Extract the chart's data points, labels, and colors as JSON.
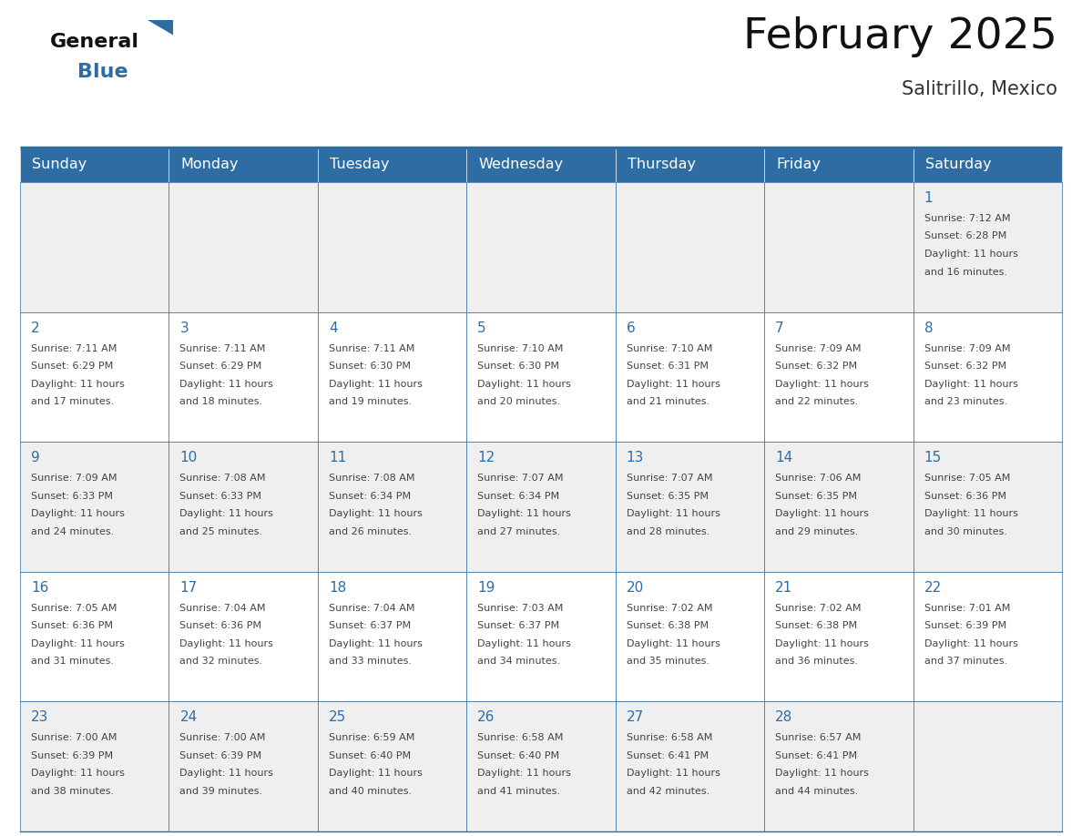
{
  "title": "February 2025",
  "subtitle": "Salitrillo, Mexico",
  "days_of_week": [
    "Sunday",
    "Monday",
    "Tuesday",
    "Wednesday",
    "Thursday",
    "Friday",
    "Saturday"
  ],
  "header_bg": "#2E6DA4",
  "header_text": "#FFFFFF",
  "cell_bg_odd": "#EFEFEF",
  "cell_bg_even": "#FFFFFF",
  "border_color": "#2E6DA4",
  "day_number_color": "#2E6DA4",
  "text_color": "#444444",
  "logo_general_color": "#111111",
  "logo_blue_color": "#2E6DA4",
  "weeks": [
    [
      null,
      null,
      null,
      null,
      null,
      null,
      1
    ],
    [
      2,
      3,
      4,
      5,
      6,
      7,
      8
    ],
    [
      9,
      10,
      11,
      12,
      13,
      14,
      15
    ],
    [
      16,
      17,
      18,
      19,
      20,
      21,
      22
    ],
    [
      23,
      24,
      25,
      26,
      27,
      28,
      null
    ]
  ],
  "cell_data": {
    "1": {
      "sunrise": "7:12 AM",
      "sunset": "6:28 PM",
      "daylight_hours": 11,
      "daylight_minutes": 16
    },
    "2": {
      "sunrise": "7:11 AM",
      "sunset": "6:29 PM",
      "daylight_hours": 11,
      "daylight_minutes": 17
    },
    "3": {
      "sunrise": "7:11 AM",
      "sunset": "6:29 PM",
      "daylight_hours": 11,
      "daylight_minutes": 18
    },
    "4": {
      "sunrise": "7:11 AM",
      "sunset": "6:30 PM",
      "daylight_hours": 11,
      "daylight_minutes": 19
    },
    "5": {
      "sunrise": "7:10 AM",
      "sunset": "6:30 PM",
      "daylight_hours": 11,
      "daylight_minutes": 20
    },
    "6": {
      "sunrise": "7:10 AM",
      "sunset": "6:31 PM",
      "daylight_hours": 11,
      "daylight_minutes": 21
    },
    "7": {
      "sunrise": "7:09 AM",
      "sunset": "6:32 PM",
      "daylight_hours": 11,
      "daylight_minutes": 22
    },
    "8": {
      "sunrise": "7:09 AM",
      "sunset": "6:32 PM",
      "daylight_hours": 11,
      "daylight_minutes": 23
    },
    "9": {
      "sunrise": "7:09 AM",
      "sunset": "6:33 PM",
      "daylight_hours": 11,
      "daylight_minutes": 24
    },
    "10": {
      "sunrise": "7:08 AM",
      "sunset": "6:33 PM",
      "daylight_hours": 11,
      "daylight_minutes": 25
    },
    "11": {
      "sunrise": "7:08 AM",
      "sunset": "6:34 PM",
      "daylight_hours": 11,
      "daylight_minutes": 26
    },
    "12": {
      "sunrise": "7:07 AM",
      "sunset": "6:34 PM",
      "daylight_hours": 11,
      "daylight_minutes": 27
    },
    "13": {
      "sunrise": "7:07 AM",
      "sunset": "6:35 PM",
      "daylight_hours": 11,
      "daylight_minutes": 28
    },
    "14": {
      "sunrise": "7:06 AM",
      "sunset": "6:35 PM",
      "daylight_hours": 11,
      "daylight_minutes": 29
    },
    "15": {
      "sunrise": "7:05 AM",
      "sunset": "6:36 PM",
      "daylight_hours": 11,
      "daylight_minutes": 30
    },
    "16": {
      "sunrise": "7:05 AM",
      "sunset": "6:36 PM",
      "daylight_hours": 11,
      "daylight_minutes": 31
    },
    "17": {
      "sunrise": "7:04 AM",
      "sunset": "6:36 PM",
      "daylight_hours": 11,
      "daylight_minutes": 32
    },
    "18": {
      "sunrise": "7:04 AM",
      "sunset": "6:37 PM",
      "daylight_hours": 11,
      "daylight_minutes": 33
    },
    "19": {
      "sunrise": "7:03 AM",
      "sunset": "6:37 PM",
      "daylight_hours": 11,
      "daylight_minutes": 34
    },
    "20": {
      "sunrise": "7:02 AM",
      "sunset": "6:38 PM",
      "daylight_hours": 11,
      "daylight_minutes": 35
    },
    "21": {
      "sunrise": "7:02 AM",
      "sunset": "6:38 PM",
      "daylight_hours": 11,
      "daylight_minutes": 36
    },
    "22": {
      "sunrise": "7:01 AM",
      "sunset": "6:39 PM",
      "daylight_hours": 11,
      "daylight_minutes": 37
    },
    "23": {
      "sunrise": "7:00 AM",
      "sunset": "6:39 PM",
      "daylight_hours": 11,
      "daylight_minutes": 38
    },
    "24": {
      "sunrise": "7:00 AM",
      "sunset": "6:39 PM",
      "daylight_hours": 11,
      "daylight_minutes": 39
    },
    "25": {
      "sunrise": "6:59 AM",
      "sunset": "6:40 PM",
      "daylight_hours": 11,
      "daylight_minutes": 40
    },
    "26": {
      "sunrise": "6:58 AM",
      "sunset": "6:40 PM",
      "daylight_hours": 11,
      "daylight_minutes": 41
    },
    "27": {
      "sunrise": "6:58 AM",
      "sunset": "6:41 PM",
      "daylight_hours": 11,
      "daylight_minutes": 42
    },
    "28": {
      "sunrise": "6:57 AM",
      "sunset": "6:41 PM",
      "daylight_hours": 11,
      "daylight_minutes": 44
    }
  }
}
